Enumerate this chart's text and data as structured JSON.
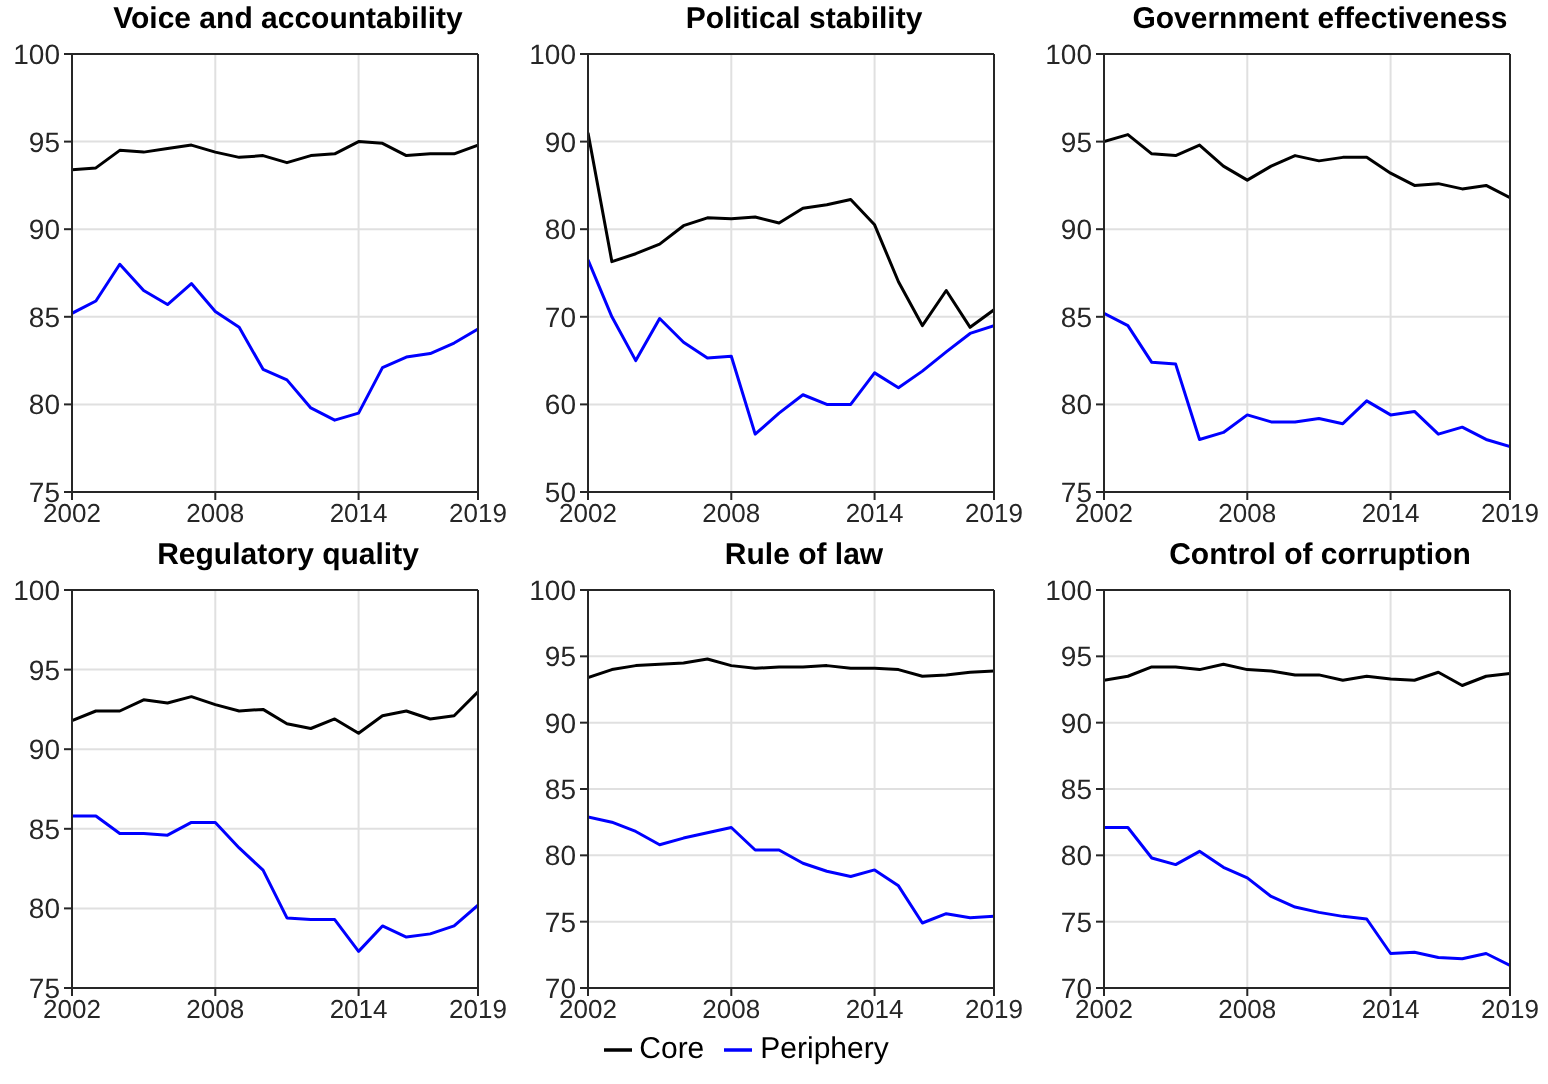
{
  "chart_data": [
    {
      "type": "line",
      "title": "Voice and accountability",
      "x": [
        2002,
        2003,
        2004,
        2005,
        2006,
        2007,
        2008,
        2009,
        2010,
        2011,
        2012,
        2013,
        2014,
        2015,
        2016,
        2017,
        2018,
        2019
      ],
      "xlim": [
        2002,
        2019
      ],
      "xticks": [
        2002,
        2008,
        2014,
        2019
      ],
      "ylim": [
        75,
        100
      ],
      "yticks": [
        75,
        80,
        85,
        90,
        95,
        100
      ],
      "grid": true,
      "series": [
        {
          "color": "#000000",
          "values": [
            93.4,
            93.5,
            94.5,
            94.4,
            94.6,
            94.8,
            94.4,
            94.1,
            94.2,
            93.8,
            94.2,
            94.3,
            95.0,
            94.9,
            94.2,
            94.3,
            94.3,
            94.8
          ]
        },
        {
          "color": "#0000ff",
          "values": [
            85.2,
            85.9,
            88.0,
            86.5,
            85.7,
            86.9,
            85.3,
            84.4,
            82.0,
            81.4,
            79.8,
            79.1,
            79.5,
            82.1,
            82.7,
            82.9,
            83.5,
            84.3
          ]
        }
      ]
    },
    {
      "type": "line",
      "title": "Political stability",
      "x": [
        2002,
        2003,
        2004,
        2005,
        2006,
        2007,
        2008,
        2009,
        2010,
        2011,
        2012,
        2013,
        2014,
        2015,
        2016,
        2017,
        2018,
        2019
      ],
      "xlim": [
        2002,
        2019
      ],
      "xticks": [
        2002,
        2008,
        2014,
        2019
      ],
      "ylim": [
        50,
        100
      ],
      "yticks": [
        50,
        60,
        70,
        80,
        90,
        100
      ],
      "grid": true,
      "series": [
        {
          "color": "#000000",
          "values": [
            91,
            76.3,
            77.2,
            78.3,
            80.4,
            81.3,
            81.2,
            81.4,
            80.7,
            82.4,
            82.8,
            83.4,
            80.5,
            74,
            69,
            73,
            68.8,
            70.8
          ]
        },
        {
          "color": "#0000ff",
          "values": [
            76.5,
            70,
            65,
            69.8,
            67.1,
            65.3,
            65.5,
            56.6,
            59,
            61.1,
            60,
            60,
            63.6,
            61.9,
            63.8,
            66,
            68.1,
            69
          ]
        }
      ]
    },
    {
      "type": "line",
      "title": "Government effectiveness",
      "x": [
        2002,
        2003,
        2004,
        2005,
        2006,
        2007,
        2008,
        2009,
        2010,
        2011,
        2012,
        2013,
        2014,
        2015,
        2016,
        2017,
        2018,
        2019
      ],
      "xlim": [
        2002,
        2019
      ],
      "xticks": [
        2002,
        2008,
        2014,
        2019
      ],
      "ylim": [
        75,
        100
      ],
      "yticks": [
        75,
        80,
        85,
        90,
        95,
        100
      ],
      "grid": true,
      "series": [
        {
          "color": "#000000",
          "values": [
            95,
            95.4,
            94.3,
            94.2,
            94.8,
            93.6,
            92.8,
            93.6,
            94.2,
            93.9,
            94.1,
            94.1,
            93.2,
            92.5,
            92.6,
            92.3,
            92.5,
            91.8
          ]
        },
        {
          "color": "#0000ff",
          "values": [
            85.2,
            84.5,
            82.4,
            82.3,
            78,
            78.4,
            79.4,
            79,
            79,
            79.2,
            78.9,
            80.2,
            79.4,
            79.6,
            78.3,
            78.7,
            78,
            77.6
          ]
        }
      ]
    },
    {
      "type": "line",
      "title": "Regulatory quality",
      "x": [
        2002,
        2003,
        2004,
        2005,
        2006,
        2007,
        2008,
        2009,
        2010,
        2011,
        2012,
        2013,
        2014,
        2015,
        2016,
        2017,
        2018,
        2019
      ],
      "xlim": [
        2002,
        2019
      ],
      "xticks": [
        2002,
        2008,
        2014,
        2019
      ],
      "ylim": [
        75,
        100
      ],
      "yticks": [
        75,
        80,
        85,
        90,
        95,
        100
      ],
      "grid": true,
      "series": [
        {
          "color": "#000000",
          "values": [
            91.8,
            92.4,
            92.4,
            93.1,
            92.9,
            93.3,
            92.8,
            92.4,
            92.5,
            91.6,
            91.3,
            91.9,
            91.0,
            92.1,
            92.4,
            91.9,
            92.1,
            93.6
          ]
        },
        {
          "color": "#0000ff",
          "values": [
            85.8,
            85.8,
            84.7,
            84.7,
            84.6,
            85.4,
            85.4,
            83.8,
            82.4,
            79.4,
            79.3,
            79.3,
            77.3,
            78.9,
            78.2,
            78.4,
            78.9,
            80.2
          ]
        }
      ]
    },
    {
      "type": "line",
      "title": "Rule of law",
      "x": [
        2002,
        2003,
        2004,
        2005,
        2006,
        2007,
        2008,
        2009,
        2010,
        2011,
        2012,
        2013,
        2014,
        2015,
        2016,
        2017,
        2018,
        2019
      ],
      "xlim": [
        2002,
        2019
      ],
      "xticks": [
        2002,
        2008,
        2014,
        2019
      ],
      "ylim": [
        70,
        100
      ],
      "yticks": [
        70,
        75,
        80,
        85,
        90,
        95,
        100
      ],
      "grid": true,
      "legend": "bottom",
      "series": [
        {
          "name": "Core",
          "color": "#000000",
          "values": [
            93.4,
            94,
            94.3,
            94.4,
            94.5,
            94.8,
            94.3,
            94.1,
            94.2,
            94.2,
            94.3,
            94.1,
            94.1,
            94,
            93.5,
            93.6,
            93.8,
            93.9
          ]
        },
        {
          "name": "Periphery",
          "color": "#0000ff",
          "values": [
            82.9,
            82.5,
            81.8,
            80.8,
            81.3,
            81.7,
            82.1,
            80.4,
            80.4,
            79.4,
            78.8,
            78.4,
            78.9,
            77.7,
            74.9,
            75.6,
            75.3,
            75.4
          ]
        }
      ]
    },
    {
      "type": "line",
      "title": "Control of corruption",
      "x": [
        2002,
        2003,
        2004,
        2005,
        2006,
        2007,
        2008,
        2009,
        2010,
        2011,
        2012,
        2013,
        2014,
        2015,
        2016,
        2017,
        2018,
        2019
      ],
      "xlim": [
        2002,
        2019
      ],
      "xticks": [
        2002,
        2008,
        2014,
        2019
      ],
      "ylim": [
        70,
        100
      ],
      "yticks": [
        70,
        75,
        80,
        85,
        90,
        95,
        100
      ],
      "grid": true,
      "series": [
        {
          "color": "#000000",
          "values": [
            93.2,
            93.5,
            94.2,
            94.2,
            94,
            94.4,
            94,
            93.9,
            93.6,
            93.6,
            93.2,
            93.5,
            93.3,
            93.2,
            93.8,
            92.8,
            93.5,
            93.7
          ]
        },
        {
          "color": "#0000ff",
          "values": [
            82.1,
            82.1,
            79.8,
            79.3,
            80.3,
            79.1,
            78.3,
            76.9,
            76.1,
            75.7,
            75.4,
            75.2,
            72.6,
            72.7,
            72.3,
            72.2,
            72.6,
            71.7
          ]
        }
      ]
    }
  ]
}
